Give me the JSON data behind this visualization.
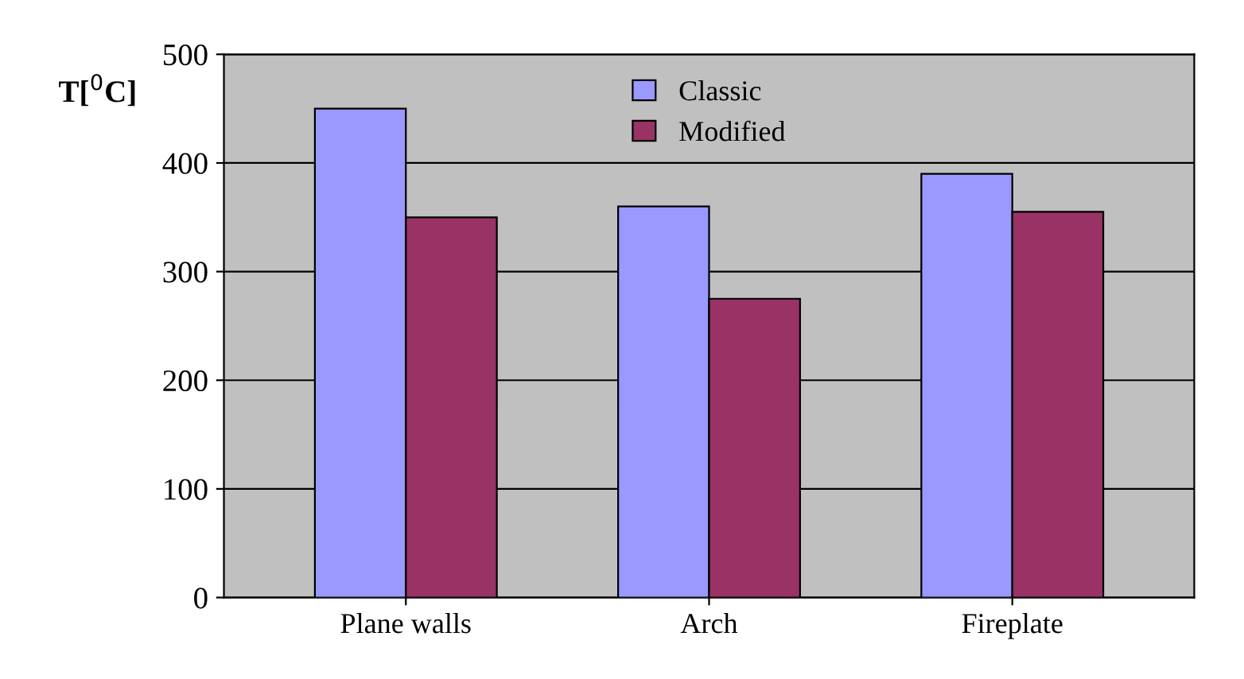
{
  "chart_data": {
    "type": "bar",
    "ylabel": "T[$^{0}$C]",
    "categories": [
      "Plane walls",
      "Arch",
      "Fireplate"
    ],
    "series": [
      {
        "name": "Classic",
        "color": "#9999ff",
        "values": [
          450,
          360,
          390
        ]
      },
      {
        "name": "Modified",
        "color": "#993366",
        "values": [
          350,
          275,
          355
        ]
      }
    ],
    "ylim": [
      0,
      500
    ],
    "yticks": [
      0,
      100,
      200,
      300,
      400,
      500
    ],
    "grid": "y",
    "legend": "top"
  }
}
